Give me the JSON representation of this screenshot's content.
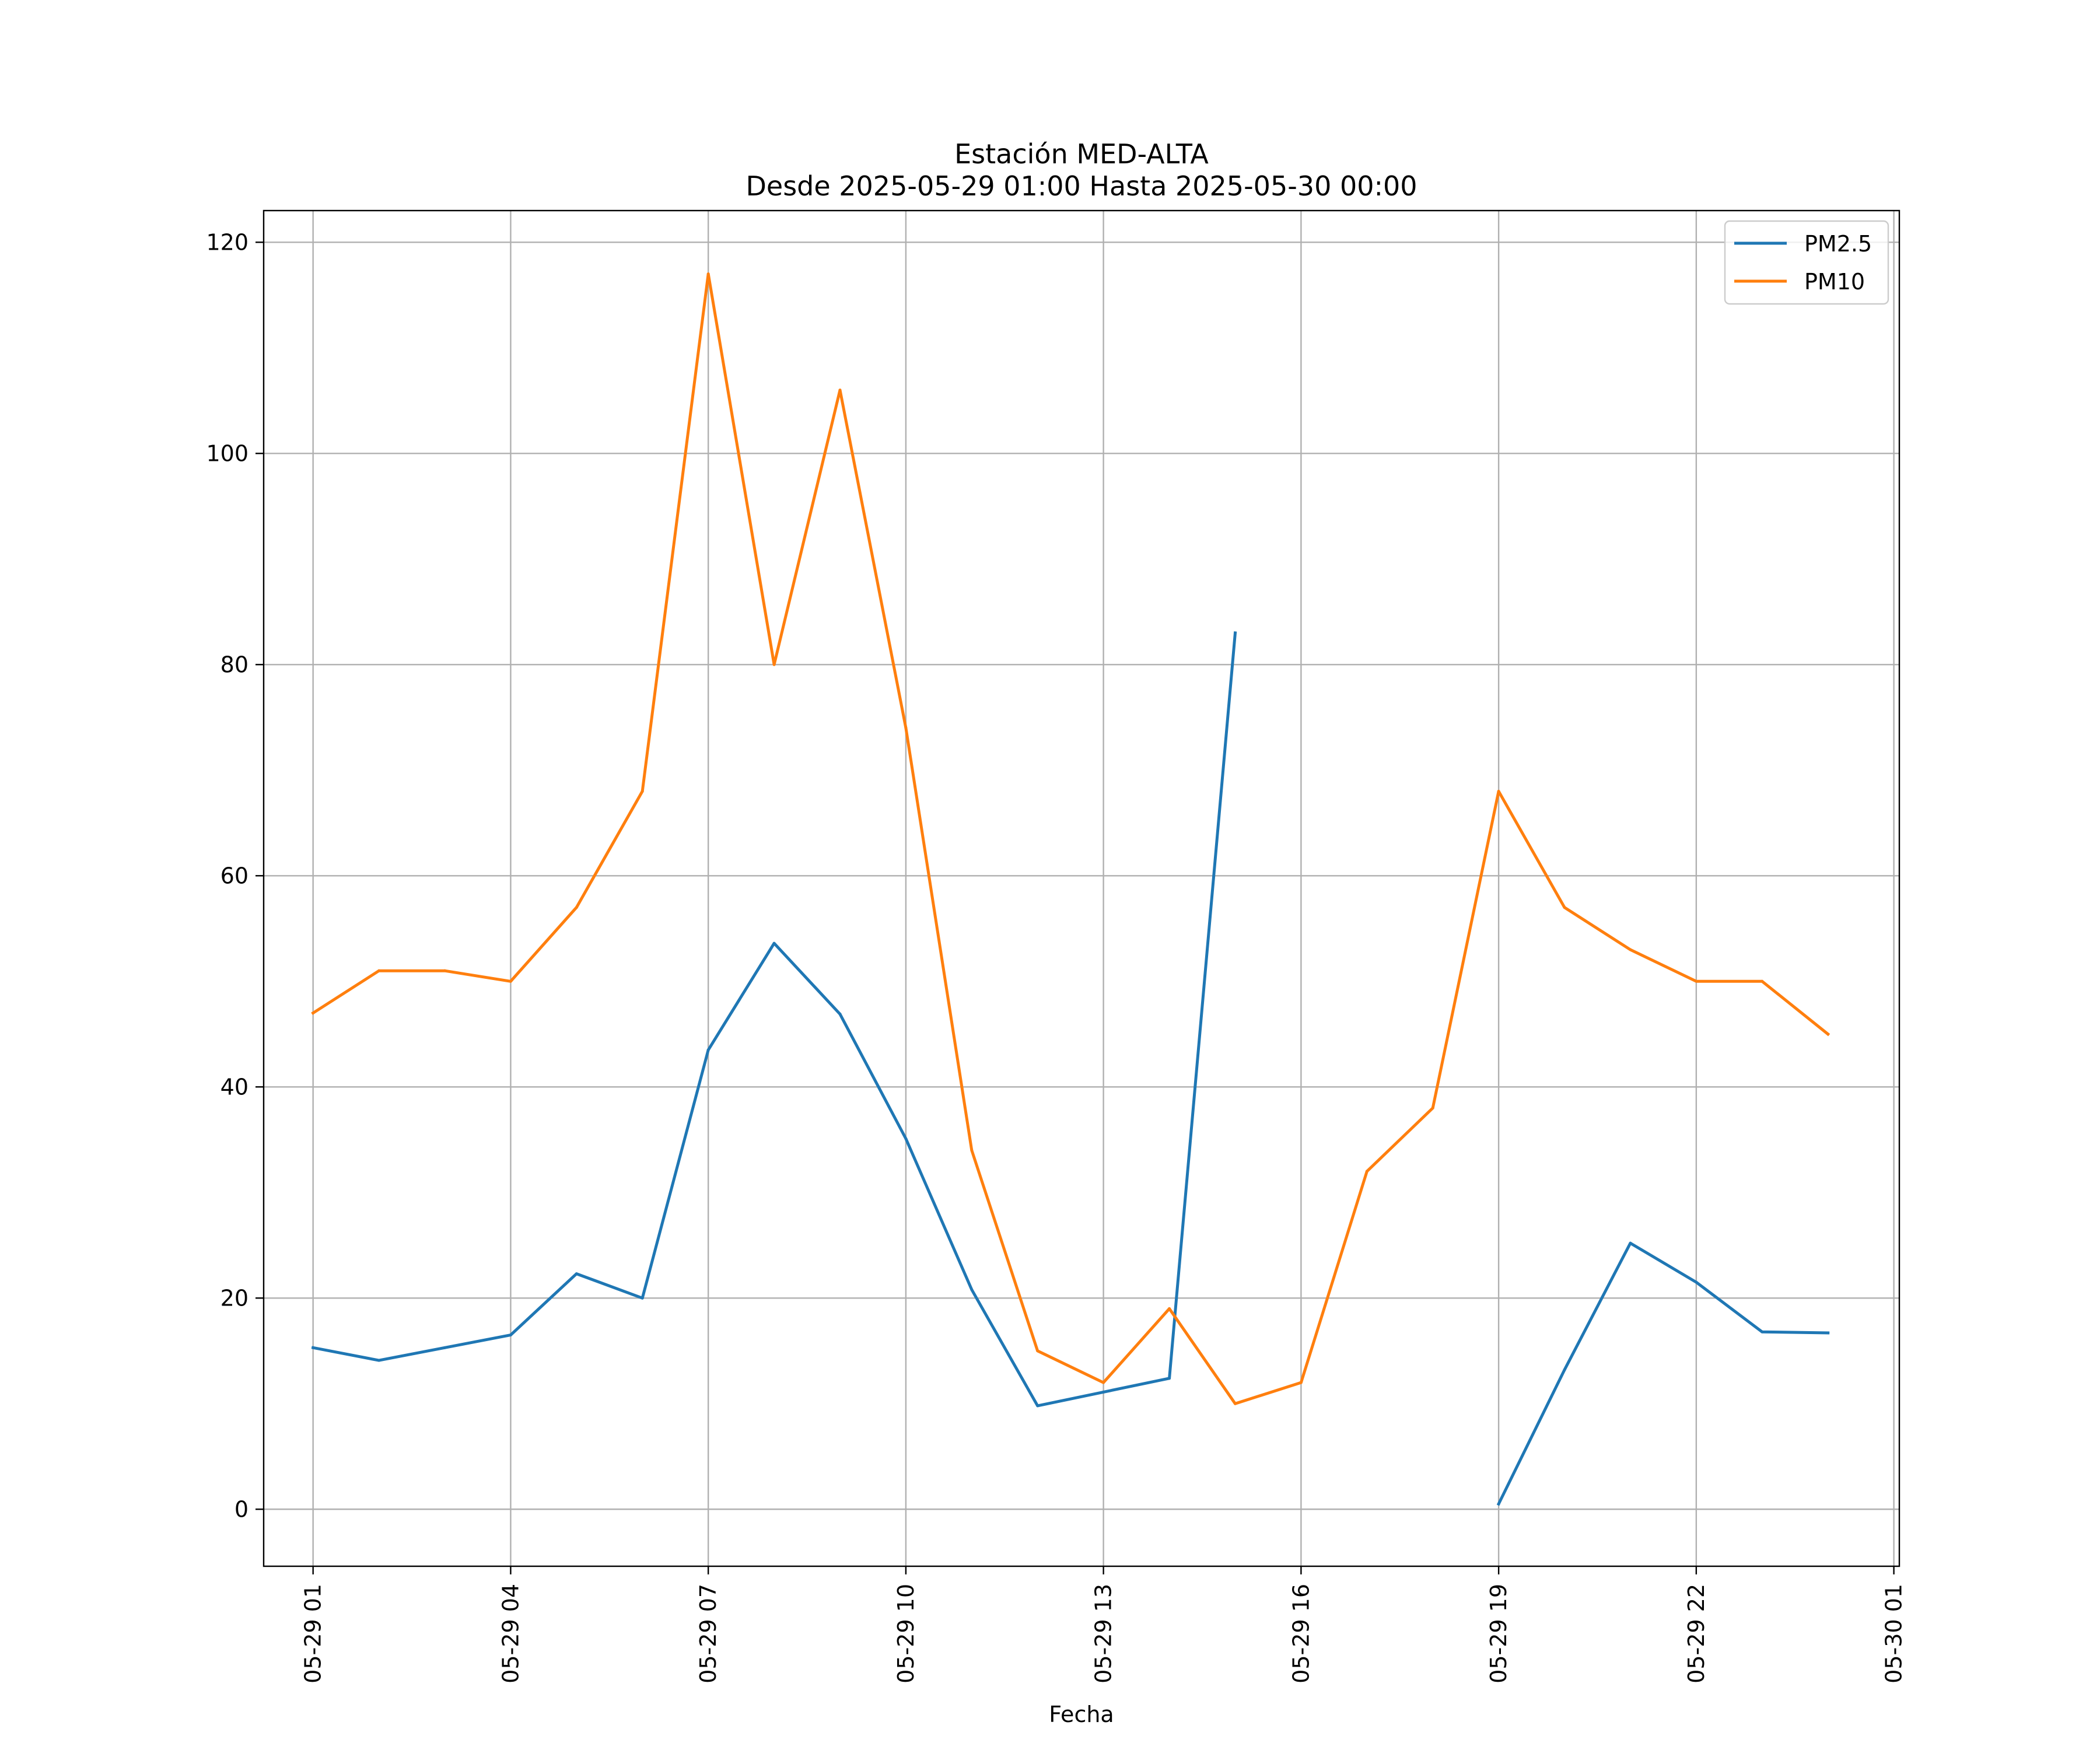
{
  "chart_data": {
    "type": "line",
    "title_line1": "Estación MED-ALTA",
    "title_line2": "Desde 2025-05-29 01:00 Hasta 2025-05-30 00:00",
    "xlabel": "Fecha",
    "ylabel": "",
    "x_hours": [
      1,
      2,
      3,
      4,
      5,
      6,
      7,
      8,
      9,
      10,
      11,
      12,
      13,
      14,
      15,
      16,
      17,
      18,
      19,
      20,
      21,
      22,
      23,
      24
    ],
    "x_range": [
      "05-29 00:15",
      "05-30 01:05"
    ],
    "ylim": [
      -5.4,
      123
    ],
    "x_ticks": [
      {
        "value": "05-29 01",
        "label": "05-29 01"
      },
      {
        "value": "05-29 04",
        "label": "05-29 04"
      },
      {
        "value": "05-29 07",
        "label": "05-29 07"
      },
      {
        "value": "05-29 10",
        "label": "05-29 10"
      },
      {
        "value": "05-29 13",
        "label": "05-29 13"
      },
      {
        "value": "05-29 16",
        "label": "05-29 16"
      },
      {
        "value": "05-29 19",
        "label": "05-29 19"
      },
      {
        "value": "05-29 22",
        "label": "05-29 22"
      },
      {
        "value": "05-30 01",
        "label": "05-30 01"
      }
    ],
    "y_ticks": [
      0,
      20,
      40,
      60,
      80,
      100,
      120
    ],
    "grid": true,
    "legend_position": "top-right",
    "series": [
      {
        "name": "PM2.5",
        "color": "#1f77b4",
        "values": [
          15.3,
          14.1,
          15.3,
          16.5,
          22.3,
          20.0,
          43.5,
          53.6,
          46.9,
          35.1,
          20.8,
          9.8,
          11.1,
          12.4,
          83.0,
          null,
          null,
          null,
          0.5,
          13.2,
          25.2,
          21.5,
          16.8,
          16.7
        ]
      },
      {
        "name": "PM10",
        "color": "#ff7f0e",
        "values": [
          47,
          51,
          51,
          50,
          57,
          68,
          117,
          80,
          106,
          74,
          34,
          15,
          12,
          19,
          10,
          12,
          32,
          38,
          68,
          57,
          53,
          50,
          50,
          45
        ]
      }
    ]
  }
}
